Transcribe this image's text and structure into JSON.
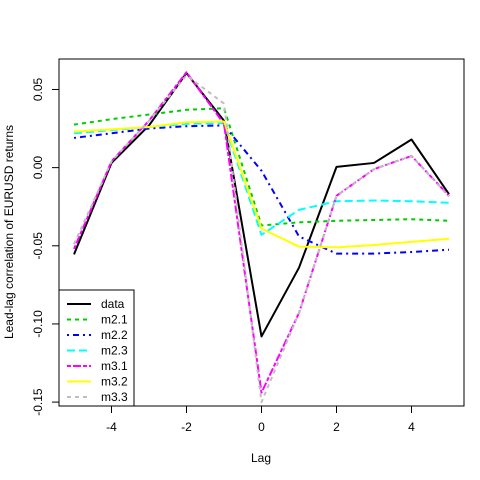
{
  "chart_data": {
    "type": "line",
    "title": "",
    "xlabel": "Lag",
    "ylabel": "Lead-lag correlation of EURUSD returns",
    "xlim": [
      -5.4,
      5.4
    ],
    "ylim": [
      -0.1525,
      0.0695
    ],
    "x_ticks": [
      -4,
      -2,
      0,
      2,
      4
    ],
    "y_ticks": [
      -0.15,
      -0.1,
      -0.05,
      0.0,
      0.05
    ],
    "x_tick_labels": [
      "-4",
      "-2",
      "0",
      "2",
      "4"
    ],
    "y_tick_labels": [
      "-0.15",
      "-0.10",
      "-0.05",
      "0.00",
      "0.05"
    ],
    "x": [
      -5,
      -4,
      -3,
      -2,
      -1,
      0,
      1,
      2,
      3,
      4,
      5
    ],
    "series": [
      {
        "name": "data",
        "color": "#000000",
        "dash": "solid",
        "values": [
          -0.0555,
          0.003,
          0.027,
          0.0605,
          0.03,
          -0.108,
          -0.064,
          0.0005,
          0.003,
          0.018,
          -0.017
        ]
      },
      {
        "name": "m2.1",
        "color": "#00cd00",
        "dash": "dashed",
        "values": [
          0.0275,
          0.031,
          0.034,
          0.037,
          0.038,
          -0.037,
          -0.035,
          -0.034,
          -0.0335,
          -0.033,
          -0.034
        ]
      },
      {
        "name": "m2.2",
        "color": "#0000ff",
        "dash": "dotdash",
        "values": [
          0.019,
          0.022,
          0.025,
          0.0265,
          0.027,
          -0.002,
          -0.044,
          -0.055,
          -0.055,
          -0.054,
          -0.0525
        ]
      },
      {
        "name": "m2.3",
        "color": "#00ffff",
        "dash": "longdash",
        "values": [
          0.022,
          0.024,
          0.026,
          0.028,
          0.0285,
          -0.043,
          -0.027,
          -0.0215,
          -0.021,
          -0.0215,
          -0.0225
        ]
      },
      {
        "name": "m3.1",
        "color": "#ff00ff",
        "dash": "twodash",
        "values": [
          -0.052,
          0.004,
          0.03,
          0.061,
          0.028,
          -0.144,
          -0.093,
          -0.018,
          -0.001,
          0.0075,
          -0.018
        ]
      },
      {
        "name": "m3.2",
        "color": "#ffff00",
        "dash": "solid",
        "values": [
          0.023,
          0.0245,
          0.026,
          0.029,
          0.0295,
          -0.039,
          -0.0505,
          -0.051,
          -0.0495,
          -0.0475,
          -0.0455
        ]
      },
      {
        "name": "m3.3",
        "color": "#bebebe",
        "dash": "dashed",
        "values": [
          -0.049,
          0.004,
          0.03,
          0.059,
          0.041,
          -0.15,
          -0.093,
          -0.018,
          -0.001,
          0.0075,
          -0.0185
        ]
      }
    ],
    "legend_position": "bottom-left",
    "grid": false
  }
}
